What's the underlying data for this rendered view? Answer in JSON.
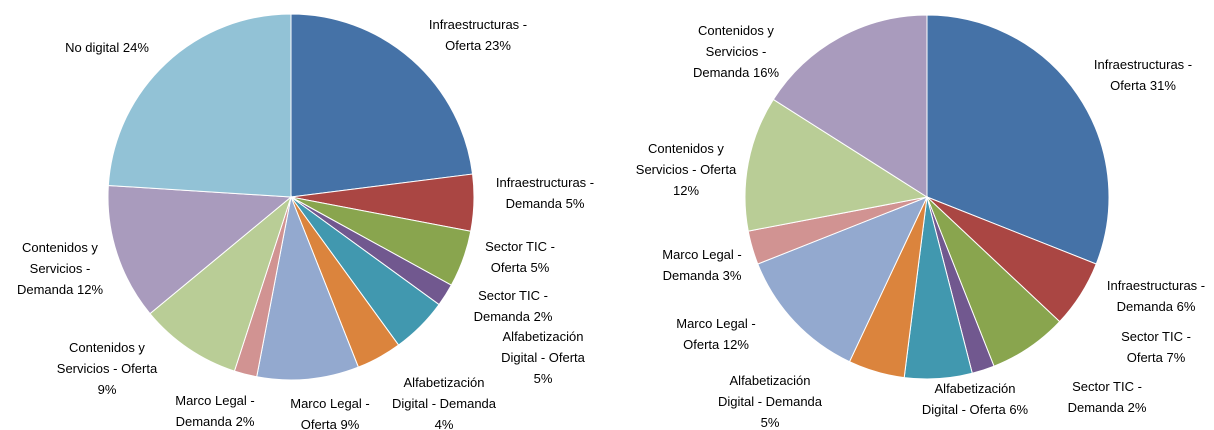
{
  "chart_data": [
    {
      "type": "pie",
      "categories": [
        "Infraestructuras - Oferta",
        "Infraestructuras - Demanda",
        "Sector TIC - Oferta",
        "Sector TIC - Demanda",
        "Alfabetización Digital - Oferta",
        "Alfabetización Digital - Demanda",
        "Marco Legal - Oferta",
        "Marco Legal - Demanda",
        "Contenidos y Servicios - Oferta",
        "Contenidos y Servicios - Demanda",
        "No digital"
      ],
      "values": [
        23,
        5,
        5,
        2,
        5,
        4,
        9,
        2,
        9,
        12,
        24
      ],
      "value_labels": [
        "23%",
        "5%",
        "5%",
        "2%",
        "5%",
        "4%",
        "9%",
        "2%",
        "9%",
        "12%",
        "24%"
      ],
      "colors": [
        "#4572A7",
        "#AA4643",
        "#89A54E",
        "#71588F",
        "#4198AF",
        "#DB843D",
        "#93A9CF",
        "#D19392",
        "#B9CD96",
        "#A99BBD",
        "#92C2D6"
      ]
    },
    {
      "type": "pie",
      "categories": [
        "Infraestructuras - Oferta",
        "Infraestructuras - Demanda",
        "Sector TIC - Oferta",
        "Sector TIC - Demanda",
        "Alfabetización Digital - Oferta",
        "Alfabetización Digital - Demanda",
        "Marco Legal - Oferta",
        "Marco Legal - Demanda",
        "Contenidos y Servicios - Oferta",
        "Contenidos y Servicios - Demanda"
      ],
      "values": [
        31,
        6,
        7,
        2,
        6,
        5,
        12,
        3,
        12,
        16
      ],
      "value_labels": [
        "31%",
        "6%",
        "7%",
        "2%",
        "6%",
        "5%",
        "12%",
        "3%",
        "12%",
        "16%"
      ],
      "colors": [
        "#4572A7",
        "#AA4643",
        "#89A54E",
        "#71588F",
        "#4198AF",
        "#DB843D",
        "#93A9CF",
        "#D19392",
        "#B9CD96",
        "#A99BBD"
      ]
    }
  ]
}
